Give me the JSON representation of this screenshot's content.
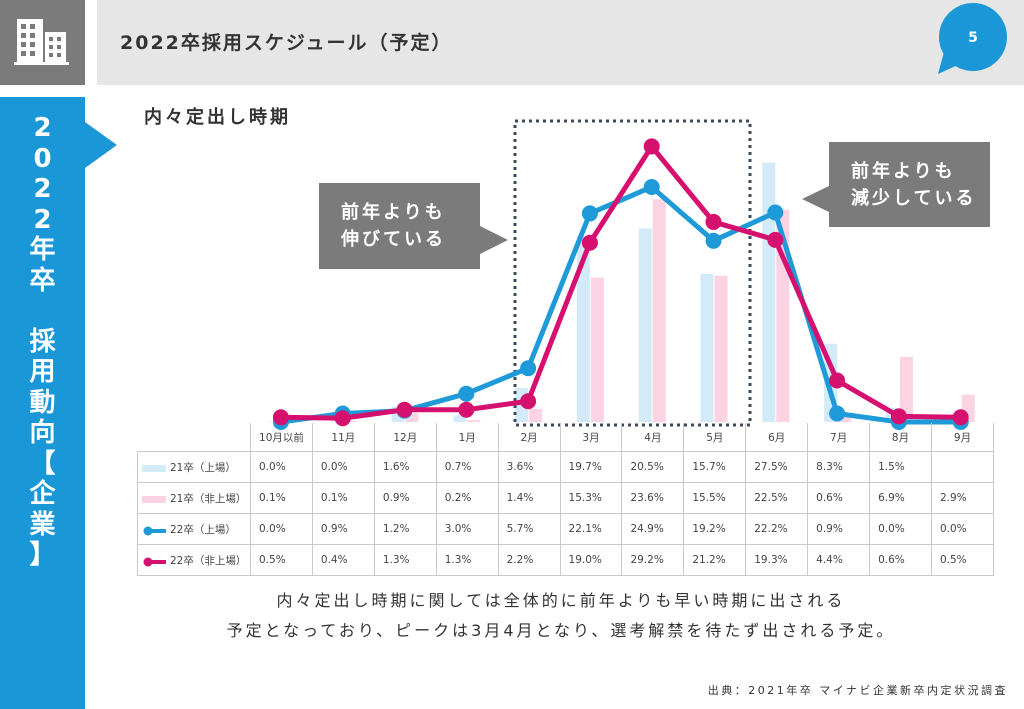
{
  "header": {
    "title": "2022卒採用スケジュール（予定）",
    "page_number": "5",
    "icon": "building-icon"
  },
  "sidebar": {
    "lines": [
      "2",
      "0",
      "2",
      "2",
      "年",
      "卒",
      "",
      "採",
      "用",
      "動",
      "向",
      "【",
      "企",
      "業",
      "】"
    ]
  },
  "section": {
    "title": "内々定出し時期"
  },
  "callouts": {
    "left": {
      "lines": [
        "前年よりも",
        "伸びている"
      ]
    },
    "right": {
      "lines": [
        "前年よりも",
        "減少している"
      ]
    }
  },
  "colors": {
    "accent_blue": "#1a97d7",
    "header_gray": "#7b7b7b",
    "series_21_listed": "#d3ebf8",
    "series_21_unlisted": "#fcd3e3",
    "series_22_listed": "#1e9ad8",
    "series_22_unlisted": "#d6106e"
  },
  "chart_data": {
    "type": "bar",
    "categories": [
      "10月以前",
      "11月",
      "12月",
      "1月",
      "2月",
      "3月",
      "4月",
      "5月",
      "6月",
      "7月",
      "8月",
      "9月"
    ],
    "series": [
      {
        "name": "21卒（上場）",
        "type": "bar",
        "values": [
          0.0,
          0.0,
          1.6,
          0.7,
          3.6,
          19.7,
          20.5,
          15.7,
          27.5,
          8.3,
          1.5,
          null
        ],
        "labels": [
          "0.0%",
          "0.0%",
          "1.6%",
          "0.7%",
          "3.6%",
          "19.7%",
          "20.5%",
          "15.7%",
          "27.5%",
          "8.3%",
          "1.5%",
          ""
        ]
      },
      {
        "name": "21卒（非上場）",
        "type": "bar",
        "values": [
          0.1,
          0.1,
          0.9,
          0.2,
          1.4,
          15.3,
          23.6,
          15.5,
          22.5,
          0.6,
          6.9,
          2.9
        ],
        "labels": [
          "0.1%",
          "0.1%",
          "0.9%",
          "0.2%",
          "1.4%",
          "15.3%",
          "23.6%",
          "15.5%",
          "22.5%",
          "0.6%",
          "6.9%",
          "2.9%"
        ]
      },
      {
        "name": "22卒（上場）",
        "type": "line",
        "values": [
          0.0,
          0.9,
          1.2,
          3.0,
          5.7,
          22.1,
          24.9,
          19.2,
          22.2,
          0.9,
          0.0,
          0.0
        ],
        "labels": [
          "0.0%",
          "0.9%",
          "1.2%",
          "3.0%",
          "5.7%",
          "22.1%",
          "24.9%",
          "19.2%",
          "22.2%",
          "0.9%",
          "0.0%",
          "0.0%"
        ]
      },
      {
        "name": "22卒（非上場）",
        "type": "line",
        "values": [
          0.5,
          0.4,
          1.3,
          1.3,
          2.2,
          19.0,
          29.2,
          21.2,
          19.3,
          4.4,
          0.6,
          0.5
        ],
        "labels": [
          "0.5%",
          "0.4%",
          "1.3%",
          "1.3%",
          "2.2%",
          "19.0%",
          "29.2%",
          "21.2%",
          "19.3%",
          "4.4%",
          "0.6%",
          "0.5%"
        ]
      }
    ],
    "ylim": [
      0,
      32
    ],
    "highlight_range": [
      "3月",
      "4月"
    ],
    "grid": false,
    "legend_placement": "table-left"
  },
  "summary": {
    "lines": [
      "内々定出し時期に関しては全体的に前年よりも早い時期に出される",
      "予定となっており、ピークは3月4月となり、選考解禁を待たず出される予定。"
    ]
  },
  "source": "出典：2021年卒 マイナビ企業新卒内定状況調査"
}
